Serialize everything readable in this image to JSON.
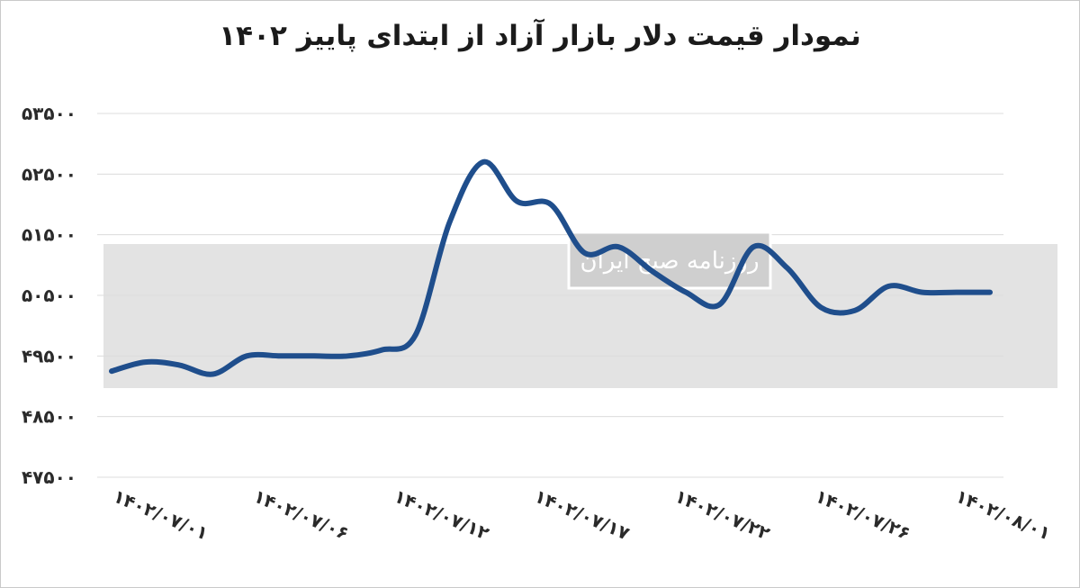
{
  "title": "نمودار قیمت دلار بازار آزاد از ابتدای پاییز ۱۴۰۲",
  "watermark_text": "روزنامه صبح ایران",
  "colors": {
    "line": "#1f4e8c",
    "grid": "#dcdcdc",
    "band": "#e3e3e3"
  },
  "chart_data": {
    "type": "line",
    "title": "نمودار قیمت دلار بازار آزاد از ابتدای پاییز ۱۴۰۲",
    "xlabel": "",
    "ylabel": "",
    "ylim": [
      47500,
      53500
    ],
    "y_ticks": [
      53500,
      52500,
      51500,
      50500,
      49500,
      48500,
      47500
    ],
    "y_tick_labels": [
      "۵۳۵۰۰",
      "۵۲۵۰۰",
      "۵۱۵۰۰",
      "۵۰۵۰۰",
      "۴۹۵۰۰",
      "۴۸۵۰۰",
      "۴۷۵۰۰"
    ],
    "x_tick_labels": [
      "۱۴۰۲/۰۷/۰۱",
      "۱۴۰۲/۰۷/۰۶",
      "۱۴۰۲/۰۷/۱۲",
      "۱۴۰۲/۰۷/۱۷",
      "۱۴۰۲/۰۷/۲۲",
      "۱۴۰۲/۰۷/۲۶",
      "۱۴۰۲/۰۸/۰۱"
    ],
    "grid": true,
    "series": [
      {
        "x": [
          1,
          1.5,
          2,
          2.5,
          3,
          3.5,
          4,
          4.5,
          5,
          5.5,
          6,
          6.5,
          7,
          7.5,
          8,
          8.5,
          9,
          9.5,
          10,
          10.5,
          11,
          11.5,
          12,
          12.5,
          13,
          13.5,
          14
        ],
        "values": [
          49250,
          49400,
          49350,
          49200,
          49500,
          49500,
          49500,
          49500,
          49600,
          49850,
          51700,
          52700,
          52050,
          52000,
          51200,
          51300,
          50900,
          50550,
          50350,
          51300,
          50950,
          50300,
          50250,
          50650,
          50550,
          50550,
          50550
        ]
      }
    ]
  }
}
